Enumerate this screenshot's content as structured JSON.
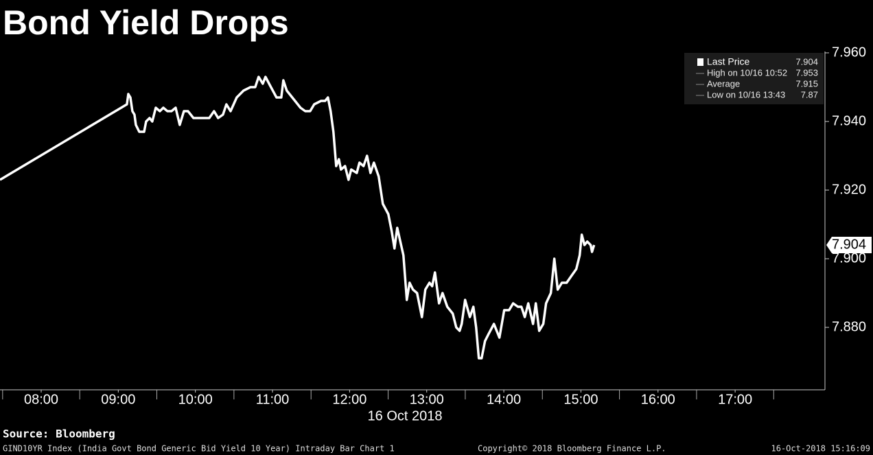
{
  "chart_data": {
    "type": "line",
    "title": "Bond Yield Drops",
    "xlabel": "16 Oct 2018",
    "series": [
      {
        "name": "Last Price",
        "color": "#ffffff",
        "x": [
          7.466,
          9.112,
          9.13,
          9.157,
          9.183,
          9.21,
          9.228,
          9.272,
          9.335,
          9.361,
          9.406,
          9.441,
          9.486,
          9.539,
          9.584,
          9.637,
          9.69,
          9.744,
          9.797,
          9.851,
          9.904,
          9.975,
          10.135,
          10.18,
          10.242,
          10.295,
          10.358,
          10.402,
          10.456,
          10.536,
          10.625,
          10.714,
          10.776,
          10.82,
          10.874,
          10.909,
          10.98,
          11.052,
          11.114,
          11.141,
          11.185,
          11.292,
          11.363,
          11.425,
          11.488,
          11.541,
          11.63,
          11.683,
          11.719,
          11.754,
          11.79,
          11.826,
          11.861,
          11.888,
          11.941,
          11.986,
          12.021,
          12.093,
          12.128,
          12.181,
          12.226,
          12.271,
          12.315,
          12.377,
          12.431,
          12.502,
          12.546,
          12.582,
          12.618,
          12.698,
          12.742,
          12.778,
          12.822,
          12.875,
          12.938,
          12.982,
          13.036,
          13.071,
          13.107,
          13.16,
          13.205,
          13.267,
          13.338,
          13.383,
          13.427,
          13.454,
          13.498,
          13.56,
          13.605,
          13.641,
          13.676,
          13.712,
          13.756,
          13.801,
          13.872,
          13.943,
          14.005,
          14.068,
          14.121,
          14.183,
          14.228,
          14.272,
          14.317,
          14.379,
          14.415,
          14.459,
          14.512,
          14.548,
          14.61,
          14.655,
          14.699,
          14.753,
          14.815,
          14.877,
          14.94,
          14.984,
          15.011,
          15.046,
          15.082,
          15.126,
          15.144,
          15.171
        ],
        "values": [
          7.923,
          7.945,
          7.948,
          7.947,
          7.943,
          7.942,
          7.939,
          7.937,
          7.937,
          7.94,
          7.941,
          7.94,
          7.944,
          7.943,
          7.944,
          7.943,
          7.943,
          7.944,
          7.939,
          7.943,
          7.943,
          7.941,
          7.941,
          7.941,
          7.943,
          7.941,
          7.942,
          7.945,
          7.943,
          7.947,
          7.949,
          7.95,
          7.95,
          7.953,
          7.951,
          7.953,
          7.95,
          7.947,
          7.947,
          7.952,
          7.949,
          7.946,
          7.944,
          7.943,
          7.943,
          7.945,
          7.946,
          7.946,
          7.947,
          7.943,
          7.937,
          7.927,
          7.929,
          7.926,
          7.927,
          7.923,
          7.926,
          7.925,
          7.928,
          7.927,
          7.93,
          7.925,
          7.928,
          7.924,
          7.916,
          7.913,
          7.908,
          7.903,
          7.909,
          7.901,
          7.888,
          7.893,
          7.891,
          7.89,
          7.883,
          7.891,
          7.893,
          7.892,
          7.896,
          7.887,
          7.89,
          7.886,
          7.884,
          7.88,
          7.879,
          7.881,
          7.888,
          7.883,
          7.886,
          7.88,
          7.871,
          7.871,
          7.876,
          7.878,
          7.881,
          7.877,
          7.885,
          7.885,
          7.887,
          7.886,
          7.886,
          7.883,
          7.887,
          7.881,
          7.887,
          7.879,
          7.881,
          7.887,
          7.89,
          7.9,
          7.891,
          7.893,
          7.893,
          7.895,
          7.897,
          7.901,
          7.907,
          7.904,
          7.905,
          7.904,
          7.902,
          7.904
        ]
      }
    ],
    "last_value": 7.904,
    "stats": [
      {
        "label": "High on 10/16 10:52",
        "value": 7.953
      },
      {
        "label": "Average",
        "value": 7.915
      },
      {
        "label": "Low on 10/16 13:43",
        "value": 7.87
      }
    ],
    "xlim": [
      7.466,
      18.165
    ],
    "xticks": [
      {
        "value": 8,
        "label": "08:00"
      },
      {
        "value": 9,
        "label": "09:00"
      },
      {
        "value": 10,
        "label": "10:00"
      },
      {
        "value": 11,
        "label": "11:00"
      },
      {
        "value": 12,
        "label": "12:00"
      },
      {
        "value": 13,
        "label": "13:00"
      },
      {
        "value": 14,
        "label": "14:00"
      },
      {
        "value": 15,
        "label": "15:00"
      },
      {
        "value": 16,
        "label": "16:00"
      },
      {
        "value": 17,
        "label": "17:00"
      }
    ],
    "ylim": [
      7.8618,
      7.9604
    ],
    "yticks": [
      {
        "value": 7.88,
        "label": "7.880"
      },
      {
        "value": 7.9,
        "label": "7.900"
      },
      {
        "value": 7.92,
        "label": "7.920"
      },
      {
        "value": 7.94,
        "label": "7.940"
      },
      {
        "value": 7.96,
        "label": "7.960"
      }
    ],
    "grid": false,
    "footer": {
      "source": "Source: Bloomberg",
      "description": "GIND10YR Index (India Govt Bond Generic Bid Yield 10 Year) Intraday Bar Chart 1",
      "copyright": "Copyright© 2018 Bloomberg Finance L.P.",
      "timestamp": "16-Oct-2018 15:16:09"
    }
  }
}
